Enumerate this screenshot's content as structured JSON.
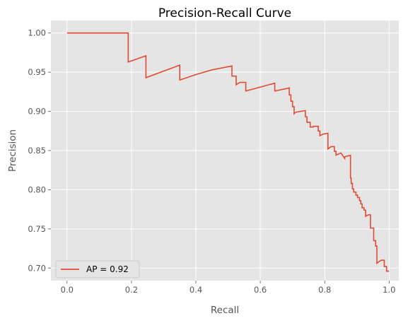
{
  "chart_data": {
    "type": "line",
    "title": "Precision-Recall Curve",
    "xlabel": "Recall",
    "ylabel": "Precision",
    "xlim": [
      -0.05,
      1.03
    ],
    "ylim": [
      0.684,
      1.016
    ],
    "xticks": [
      0.0,
      0.2,
      0.4,
      0.6,
      0.8,
      1.0
    ],
    "xtick_labels": [
      "0.0",
      "0.2",
      "0.4",
      "0.6",
      "0.8",
      "1.0"
    ],
    "yticks": [
      0.7,
      0.75,
      0.8,
      0.85,
      0.9,
      0.95,
      1.0
    ],
    "ytick_labels": [
      "0.70",
      "0.75",
      "0.80",
      "0.85",
      "0.90",
      "0.95",
      "1.00"
    ],
    "grid": true,
    "legend_position": "lower-left",
    "colors": {
      "line": "#E24A33",
      "plot_background": "#E5E5E5",
      "grid": "#FFFFFF"
    },
    "series": [
      {
        "name": "AP = 0.92",
        "x": [
          0.0,
          0.19,
          0.19,
          0.245,
          0.245,
          0.35,
          0.35,
          0.4,
          0.45,
          0.512,
          0.512,
          0.525,
          0.525,
          0.537,
          0.537,
          0.555,
          0.555,
          0.645,
          0.645,
          0.68,
          0.68,
          0.69,
          0.69,
          0.695,
          0.695,
          0.7,
          0.7,
          0.705,
          0.705,
          0.71,
          0.71,
          0.74,
          0.74,
          0.745,
          0.745,
          0.75,
          0.75,
          0.755,
          0.755,
          0.765,
          0.765,
          0.77,
          0.77,
          0.78,
          0.78,
          0.785,
          0.785,
          0.795,
          0.795,
          0.81,
          0.81,
          0.82,
          0.82,
          0.83,
          0.83,
          0.835,
          0.835,
          0.85,
          0.85,
          0.862,
          0.862,
          0.88,
          0.88,
          0.882,
          0.882,
          0.886,
          0.886,
          0.89,
          0.89,
          0.897,
          0.897,
          0.902,
          0.902,
          0.908,
          0.908,
          0.912,
          0.912,
          0.916,
          0.916,
          0.922,
          0.922,
          0.927,
          0.927,
          0.935,
          0.935,
          0.942,
          0.942,
          0.952,
          0.952,
          0.958,
          0.958,
          0.962,
          0.962,
          0.968,
          0.968,
          0.975,
          0.975,
          0.985,
          0.985,
          0.992,
          0.992,
          1.0
        ],
        "y": [
          1.0,
          1.0,
          0.963,
          0.971,
          0.943,
          0.959,
          0.94,
          0.947,
          0.953,
          0.958,
          0.945,
          0.945,
          0.934,
          0.937,
          0.937,
          0.937,
          0.926,
          0.936,
          0.926,
          0.929,
          0.929,
          0.93,
          0.921,
          0.921,
          0.913,
          0.913,
          0.906,
          0.906,
          0.897,
          0.899,
          0.899,
          0.901,
          0.893,
          0.893,
          0.886,
          0.886,
          0.886,
          0.886,
          0.88,
          0.88,
          0.881,
          0.881,
          0.881,
          0.881,
          0.875,
          0.875,
          0.869,
          0.871,
          0.871,
          0.872,
          0.852,
          0.855,
          0.855,
          0.855,
          0.849,
          0.849,
          0.844,
          0.847,
          0.847,
          0.84,
          0.842,
          0.844,
          0.815,
          0.815,
          0.808,
          0.808,
          0.801,
          0.801,
          0.797,
          0.797,
          0.793,
          0.793,
          0.79,
          0.79,
          0.786,
          0.786,
          0.782,
          0.782,
          0.777,
          0.777,
          0.774,
          0.774,
          0.766,
          0.768,
          0.768,
          0.768,
          0.751,
          0.751,
          0.735,
          0.735,
          0.728,
          0.728,
          0.706,
          0.708,
          0.708,
          0.71,
          0.71,
          0.71,
          0.702,
          0.702,
          0.696,
          0.696
        ]
      }
    ]
  }
}
